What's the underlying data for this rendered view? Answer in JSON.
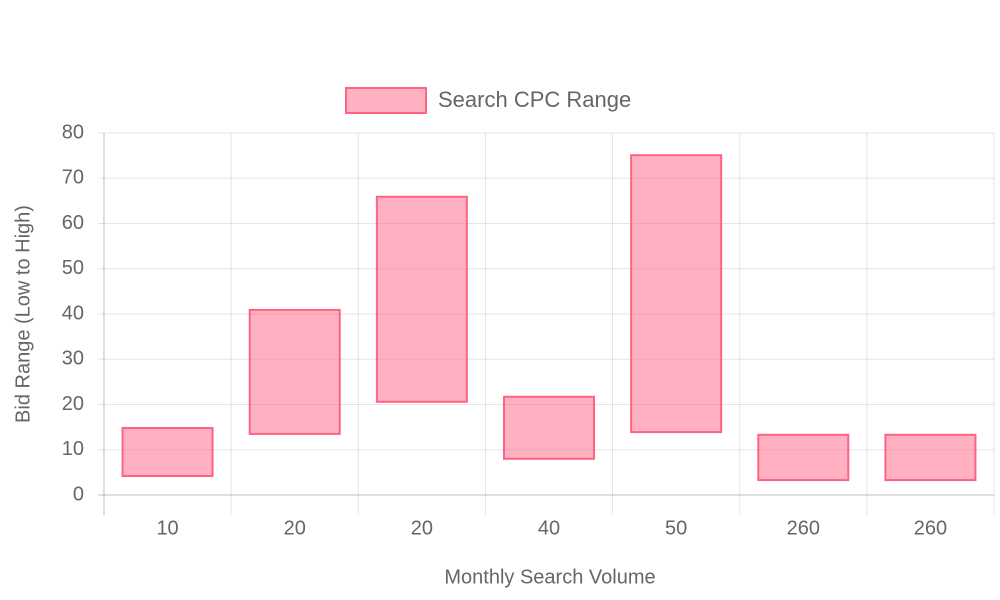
{
  "chart_data": {
    "type": "bar",
    "floating": true,
    "xlabel": "Monthly Search Volume",
    "ylabel": "Bid Range (Low to High)",
    "categories": [
      "10",
      "20",
      "20",
      "40",
      "50",
      "260",
      "260"
    ],
    "series": [
      {
        "name": "Search CPC Range",
        "color": "#ff6384",
        "values": [
          [
            4.2,
            14.8
          ],
          [
            13.5,
            40.9
          ],
          [
            20.6,
            65.9
          ],
          [
            8.0,
            21.7
          ],
          [
            13.9,
            75.1
          ],
          [
            3.3,
            13.3
          ],
          [
            3.3,
            13.3
          ]
        ]
      }
    ],
    "ylim": [
      0,
      80
    ],
    "yticks": [
      0,
      10,
      20,
      30,
      40,
      50,
      60,
      70,
      80
    ],
    "grid": true,
    "legend": "top"
  }
}
